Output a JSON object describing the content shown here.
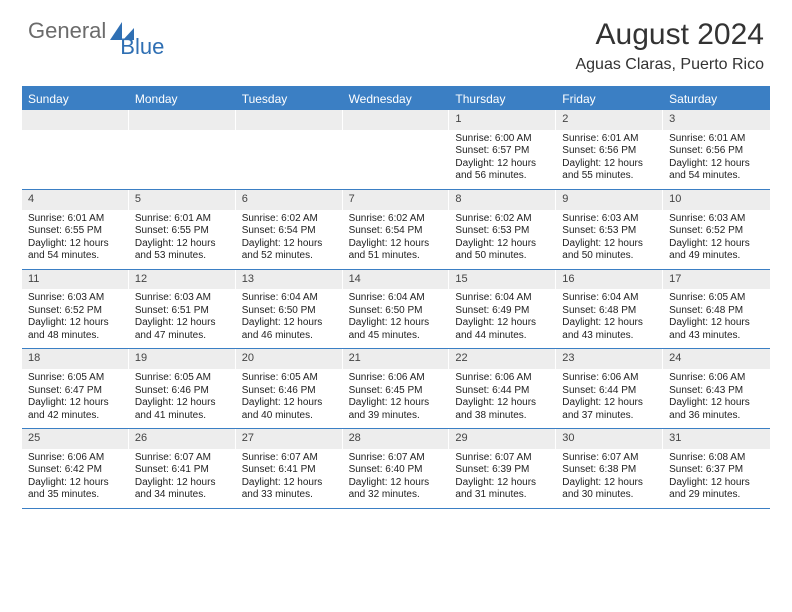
{
  "brand": {
    "text1": "General",
    "text2": "Blue",
    "color1": "#6b6b6b",
    "color2": "#2f6fb3"
  },
  "title": "August 2024",
  "location": "Aguas Claras, Puerto Rico",
  "header_bg": "#3b7fc4",
  "daynum_bg": "#ededed",
  "border_color": "#3b7fc4",
  "weekdays": [
    "Sunday",
    "Monday",
    "Tuesday",
    "Wednesday",
    "Thursday",
    "Friday",
    "Saturday"
  ],
  "weeks": [
    [
      {
        "day": "",
        "sunrise": "",
        "sunset": "",
        "daylight": ""
      },
      {
        "day": "",
        "sunrise": "",
        "sunset": "",
        "daylight": ""
      },
      {
        "day": "",
        "sunrise": "",
        "sunset": "",
        "daylight": ""
      },
      {
        "day": "",
        "sunrise": "",
        "sunset": "",
        "daylight": ""
      },
      {
        "day": "1",
        "sunrise": "Sunrise: 6:00 AM",
        "sunset": "Sunset: 6:57 PM",
        "daylight": "Daylight: 12 hours and 56 minutes."
      },
      {
        "day": "2",
        "sunrise": "Sunrise: 6:01 AM",
        "sunset": "Sunset: 6:56 PM",
        "daylight": "Daylight: 12 hours and 55 minutes."
      },
      {
        "day": "3",
        "sunrise": "Sunrise: 6:01 AM",
        "sunset": "Sunset: 6:56 PM",
        "daylight": "Daylight: 12 hours and 54 minutes."
      }
    ],
    [
      {
        "day": "4",
        "sunrise": "Sunrise: 6:01 AM",
        "sunset": "Sunset: 6:55 PM",
        "daylight": "Daylight: 12 hours and 54 minutes."
      },
      {
        "day": "5",
        "sunrise": "Sunrise: 6:01 AM",
        "sunset": "Sunset: 6:55 PM",
        "daylight": "Daylight: 12 hours and 53 minutes."
      },
      {
        "day": "6",
        "sunrise": "Sunrise: 6:02 AM",
        "sunset": "Sunset: 6:54 PM",
        "daylight": "Daylight: 12 hours and 52 minutes."
      },
      {
        "day": "7",
        "sunrise": "Sunrise: 6:02 AM",
        "sunset": "Sunset: 6:54 PM",
        "daylight": "Daylight: 12 hours and 51 minutes."
      },
      {
        "day": "8",
        "sunrise": "Sunrise: 6:02 AM",
        "sunset": "Sunset: 6:53 PM",
        "daylight": "Daylight: 12 hours and 50 minutes."
      },
      {
        "day": "9",
        "sunrise": "Sunrise: 6:03 AM",
        "sunset": "Sunset: 6:53 PM",
        "daylight": "Daylight: 12 hours and 50 minutes."
      },
      {
        "day": "10",
        "sunrise": "Sunrise: 6:03 AM",
        "sunset": "Sunset: 6:52 PM",
        "daylight": "Daylight: 12 hours and 49 minutes."
      }
    ],
    [
      {
        "day": "11",
        "sunrise": "Sunrise: 6:03 AM",
        "sunset": "Sunset: 6:52 PM",
        "daylight": "Daylight: 12 hours and 48 minutes."
      },
      {
        "day": "12",
        "sunrise": "Sunrise: 6:03 AM",
        "sunset": "Sunset: 6:51 PM",
        "daylight": "Daylight: 12 hours and 47 minutes."
      },
      {
        "day": "13",
        "sunrise": "Sunrise: 6:04 AM",
        "sunset": "Sunset: 6:50 PM",
        "daylight": "Daylight: 12 hours and 46 minutes."
      },
      {
        "day": "14",
        "sunrise": "Sunrise: 6:04 AM",
        "sunset": "Sunset: 6:50 PM",
        "daylight": "Daylight: 12 hours and 45 minutes."
      },
      {
        "day": "15",
        "sunrise": "Sunrise: 6:04 AM",
        "sunset": "Sunset: 6:49 PM",
        "daylight": "Daylight: 12 hours and 44 minutes."
      },
      {
        "day": "16",
        "sunrise": "Sunrise: 6:04 AM",
        "sunset": "Sunset: 6:48 PM",
        "daylight": "Daylight: 12 hours and 43 minutes."
      },
      {
        "day": "17",
        "sunrise": "Sunrise: 6:05 AM",
        "sunset": "Sunset: 6:48 PM",
        "daylight": "Daylight: 12 hours and 43 minutes."
      }
    ],
    [
      {
        "day": "18",
        "sunrise": "Sunrise: 6:05 AM",
        "sunset": "Sunset: 6:47 PM",
        "daylight": "Daylight: 12 hours and 42 minutes."
      },
      {
        "day": "19",
        "sunrise": "Sunrise: 6:05 AM",
        "sunset": "Sunset: 6:46 PM",
        "daylight": "Daylight: 12 hours and 41 minutes."
      },
      {
        "day": "20",
        "sunrise": "Sunrise: 6:05 AM",
        "sunset": "Sunset: 6:46 PM",
        "daylight": "Daylight: 12 hours and 40 minutes."
      },
      {
        "day": "21",
        "sunrise": "Sunrise: 6:06 AM",
        "sunset": "Sunset: 6:45 PM",
        "daylight": "Daylight: 12 hours and 39 minutes."
      },
      {
        "day": "22",
        "sunrise": "Sunrise: 6:06 AM",
        "sunset": "Sunset: 6:44 PM",
        "daylight": "Daylight: 12 hours and 38 minutes."
      },
      {
        "day": "23",
        "sunrise": "Sunrise: 6:06 AM",
        "sunset": "Sunset: 6:44 PM",
        "daylight": "Daylight: 12 hours and 37 minutes."
      },
      {
        "day": "24",
        "sunrise": "Sunrise: 6:06 AM",
        "sunset": "Sunset: 6:43 PM",
        "daylight": "Daylight: 12 hours and 36 minutes."
      }
    ],
    [
      {
        "day": "25",
        "sunrise": "Sunrise: 6:06 AM",
        "sunset": "Sunset: 6:42 PM",
        "daylight": "Daylight: 12 hours and 35 minutes."
      },
      {
        "day": "26",
        "sunrise": "Sunrise: 6:07 AM",
        "sunset": "Sunset: 6:41 PM",
        "daylight": "Daylight: 12 hours and 34 minutes."
      },
      {
        "day": "27",
        "sunrise": "Sunrise: 6:07 AM",
        "sunset": "Sunset: 6:41 PM",
        "daylight": "Daylight: 12 hours and 33 minutes."
      },
      {
        "day": "28",
        "sunrise": "Sunrise: 6:07 AM",
        "sunset": "Sunset: 6:40 PM",
        "daylight": "Daylight: 12 hours and 32 minutes."
      },
      {
        "day": "29",
        "sunrise": "Sunrise: 6:07 AM",
        "sunset": "Sunset: 6:39 PM",
        "daylight": "Daylight: 12 hours and 31 minutes."
      },
      {
        "day": "30",
        "sunrise": "Sunrise: 6:07 AM",
        "sunset": "Sunset: 6:38 PM",
        "daylight": "Daylight: 12 hours and 30 minutes."
      },
      {
        "day": "31",
        "sunrise": "Sunrise: 6:08 AM",
        "sunset": "Sunset: 6:37 PM",
        "daylight": "Daylight: 12 hours and 29 minutes."
      }
    ]
  ]
}
